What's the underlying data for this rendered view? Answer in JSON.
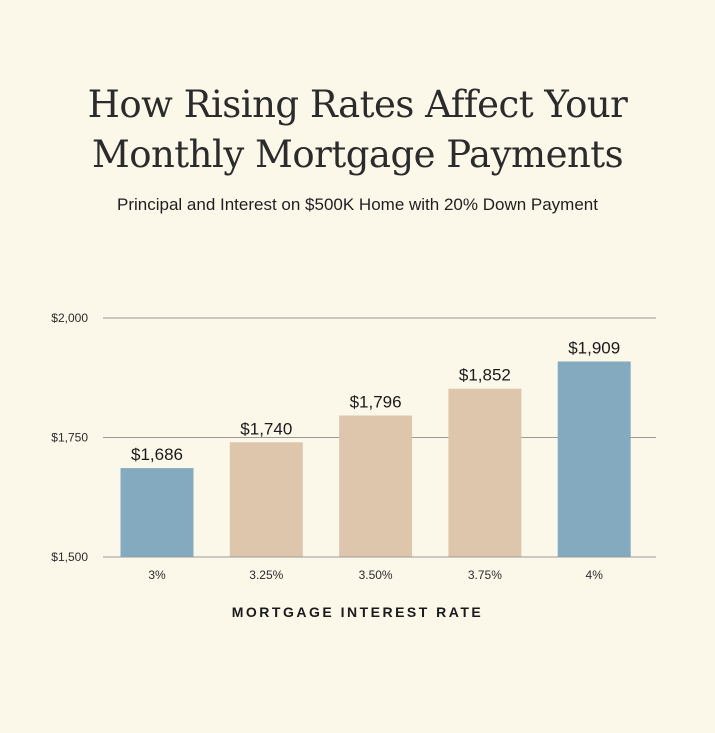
{
  "header": {
    "title": "How Rising Rates Affect Your\nMonthly Mortgage Payments",
    "subtitle": "Principal and Interest on $500K Home with 20% Down Payment"
  },
  "colors": {
    "background": "#fbf8ea",
    "highlight_bar": "#83aabe",
    "regular_bar": "#dec6ad",
    "gridline": "#9a9a9a"
  },
  "chart_data": {
    "type": "bar",
    "title": "How Rising Rates Affect Your Monthly Mortgage Payments",
    "subtitle": "Principal and Interest on $500K Home with 20% Down Payment",
    "xlabel": "MORTGAGE INTEREST RATE",
    "ylabel": "",
    "categories": [
      "3%",
      "3.25%",
      "3.50%",
      "3.75%",
      "4%"
    ],
    "values": [
      1686,
      1740,
      1796,
      1852,
      1909
    ],
    "value_labels": [
      "$1,686",
      "$1,740",
      "$1,796",
      "$1,852",
      "$1,909"
    ],
    "highlighted": [
      true,
      false,
      false,
      false,
      true
    ],
    "ylim": [
      1500,
      2000
    ],
    "yticks": [
      1500,
      1750,
      2000
    ],
    "ytick_labels": [
      "$1,500",
      "$1,750",
      "$2,000"
    ],
    "grid": true,
    "legend": "none"
  }
}
